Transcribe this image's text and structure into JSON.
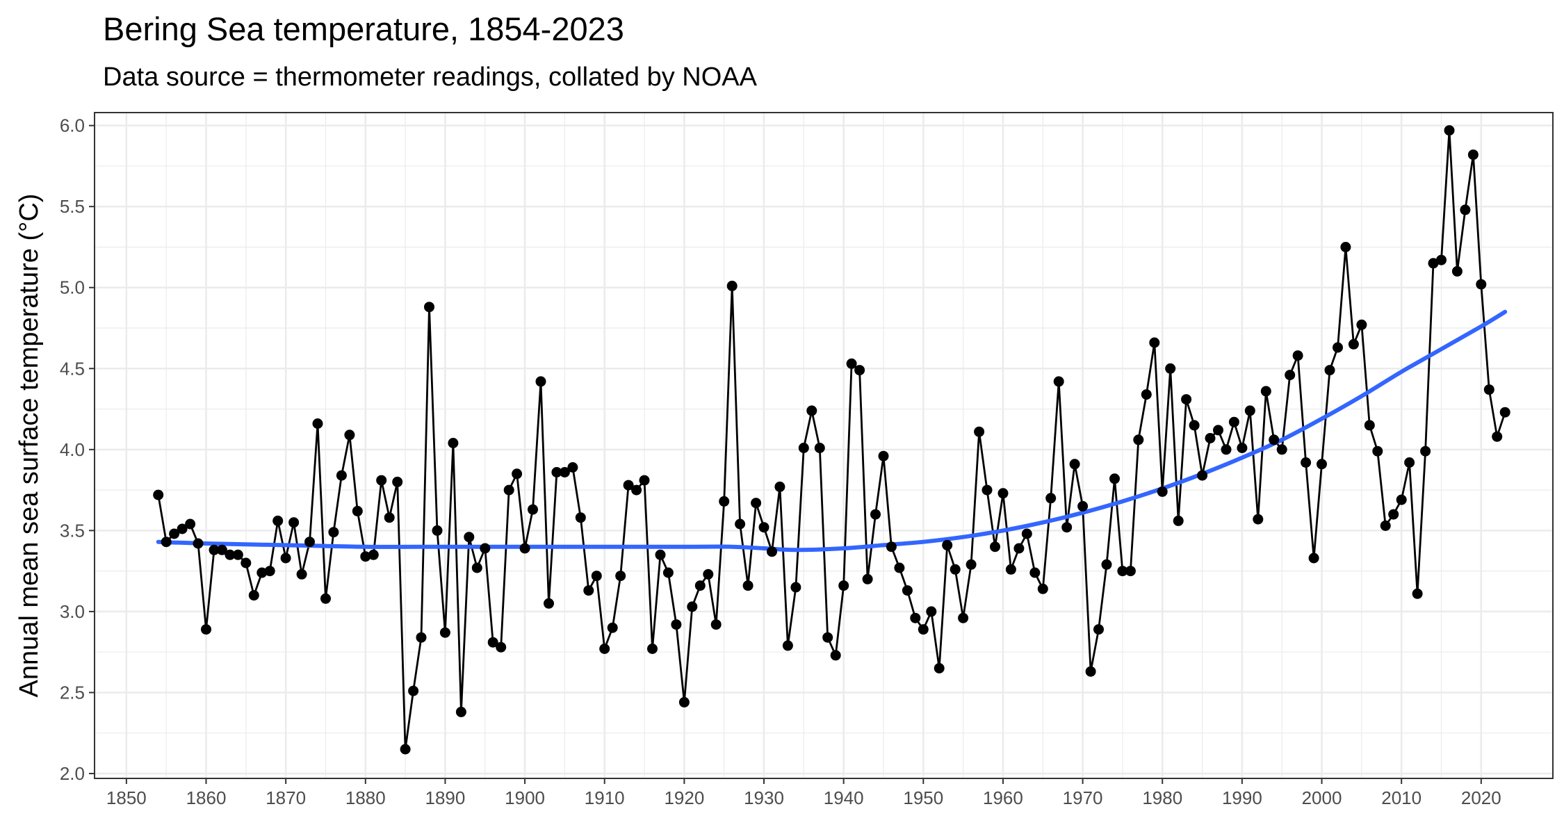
{
  "chart_data": {
    "type": "line",
    "title": "Bering Sea temperature, 1854-2023",
    "subtitle": "Data source = thermometer readings, collated by NOAA",
    "xlabel": "",
    "ylabel": "Annual mean sea surface temperature (°C)",
    "xlim": [
      1846,
      2029
    ],
    "ylim": [
      1.97,
      6.08
    ],
    "x_ticks": [
      1850,
      1860,
      1870,
      1880,
      1890,
      1900,
      1910,
      1920,
      1930,
      1940,
      1950,
      1960,
      1970,
      1980,
      1990,
      2000,
      2010,
      2020
    ],
    "y_ticks": [
      2.0,
      2.5,
      3.0,
      3.5,
      4.0,
      4.5,
      5.0,
      5.5,
      6.0
    ],
    "y_tick_labels": [
      "2.0",
      "2.5",
      "3.0",
      "3.5",
      "4.0",
      "4.5",
      "5.0",
      "5.5",
      "6.0"
    ],
    "grid": true,
    "legend": "none",
    "colors": {
      "series": "#000000",
      "trend": "#3366FF",
      "grid": "#EBEBEB",
      "panel_border": "#333333",
      "tick_label": "#4D4D4D"
    },
    "series": [
      {
        "x_start": 1854,
        "x_end": 2023,
        "style": "line+points",
        "values": [
          3.72,
          3.43,
          3.48,
          3.51,
          3.54,
          3.42,
          2.89,
          3.38,
          3.38,
          3.35,
          3.35,
          3.3,
          3.1,
          3.24,
          3.25,
          3.56,
          3.33,
          3.55,
          3.23,
          3.43,
          4.16,
          3.08,
          3.49,
          3.84,
          4.09,
          3.62,
          3.34,
          3.35,
          3.81,
          3.58,
          3.8,
          2.15,
          2.51,
          2.84,
          4.88,
          3.5,
          2.87,
          4.04,
          2.38,
          3.46,
          3.27,
          3.39,
          2.81,
          2.78,
          3.75,
          3.85,
          3.39,
          3.63,
          4.42,
          3.05,
          3.86,
          3.86,
          3.89,
          3.58,
          3.13,
          3.22,
          2.77,
          2.9,
          3.22,
          3.78,
          3.75,
          3.81,
          2.77,
          3.35,
          3.24,
          2.92,
          2.44,
          3.03,
          3.16,
          3.23,
          2.92,
          3.68,
          5.01,
          3.54,
          3.16,
          3.67,
          3.52,
          3.37,
          3.77,
          2.79,
          3.15,
          4.01,
          4.24,
          4.01,
          2.84,
          2.73,
          3.16,
          4.53,
          4.49,
          3.2,
          3.6,
          3.96,
          3.4,
          3.27,
          3.13,
          2.96,
          2.89,
          3.0,
          2.65,
          3.41,
          3.26,
          2.96,
          3.29,
          4.11,
          3.75,
          3.4,
          3.73,
          3.26,
          3.39,
          3.48,
          3.24,
          3.14,
          3.7,
          4.42,
          3.52,
          3.91,
          3.65,
          2.63,
          2.89,
          3.29,
          3.82,
          3.25,
          3.25,
          4.06,
          4.34,
          4.66,
          3.74,
          4.5,
          3.56,
          4.31,
          4.15,
          3.84,
          4.07,
          4.12,
          4.0,
          4.17,
          4.01,
          4.24,
          3.57,
          4.36,
          4.06,
          4.0,
          4.46,
          4.58,
          3.92,
          3.33,
          3.91,
          4.49,
          4.63,
          5.25,
          4.65,
          4.77,
          4.15,
          3.99,
          3.53,
          3.6,
          3.69,
          3.92,
          3.11,
          3.99,
          5.15,
          5.17,
          5.97,
          5.1,
          5.48,
          5.82,
          5.02,
          4.37,
          4.08,
          4.23
        ]
      },
      {
        "style": "smooth trend",
        "x": [
          1854,
          1860,
          1870,
          1880,
          1890,
          1900,
          1910,
          1920,
          1926,
          1930,
          1934,
          1940,
          1945,
          1950,
          1955,
          1960,
          1965,
          1970,
          1975,
          1980,
          1985,
          1990,
          1995,
          2000,
          2005,
          2010,
          2015,
          2020,
          2023
        ],
        "values": [
          3.43,
          3.42,
          3.41,
          3.4,
          3.4,
          3.4,
          3.4,
          3.4,
          3.4,
          3.39,
          3.38,
          3.39,
          3.41,
          3.43,
          3.46,
          3.5,
          3.55,
          3.61,
          3.68,
          3.76,
          3.85,
          3.95,
          4.06,
          4.19,
          4.33,
          4.48,
          4.62,
          4.76,
          4.85
        ]
      }
    ]
  }
}
